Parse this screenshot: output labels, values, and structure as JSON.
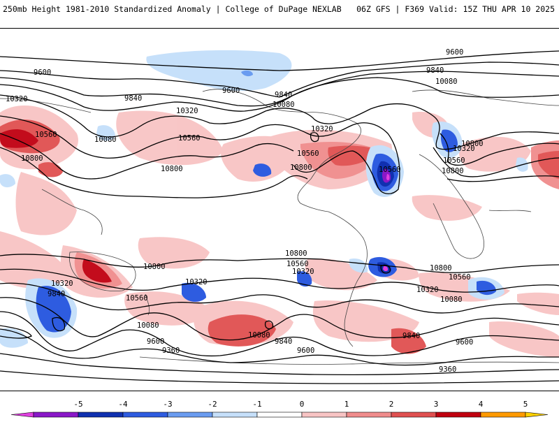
{
  "header": {
    "left": "250mb Height 1981-2010 Standardized Anomaly | College of DuPage NEXLAB",
    "right": "06Z GFS | F369 Valid: 15Z THU APR 10 2025"
  },
  "map": {
    "contour_labels": [
      {
        "id": "lbl-9600-a",
        "text": "9600"
      },
      {
        "id": "lbl-9600-b",
        "text": "9600"
      },
      {
        "id": "lbl-9600-c",
        "text": "9600"
      },
      {
        "id": "lbl-9840-a",
        "text": "9840"
      },
      {
        "id": "lbl-9840-b",
        "text": "9840"
      },
      {
        "id": "lbl-9840-c",
        "text": "9840"
      },
      {
        "id": "lbl-10080-a",
        "text": "10080"
      },
      {
        "id": "lbl-10080-b",
        "text": "10080"
      },
      {
        "id": "lbl-10080-c",
        "text": "10080"
      },
      {
        "id": "lbl-10320-a",
        "text": "10320"
      },
      {
        "id": "lbl-10320-b",
        "text": "10320"
      },
      {
        "id": "lbl-10320-c",
        "text": "10320"
      },
      {
        "id": "lbl-10320-d",
        "text": "10320"
      },
      {
        "id": "lbl-10560-a",
        "text": "10560"
      },
      {
        "id": "lbl-10560-b",
        "text": "10560"
      },
      {
        "id": "lbl-10560-c",
        "text": "10560"
      },
      {
        "id": "lbl-10560-d",
        "text": "10560"
      },
      {
        "id": "lbl-10560-e",
        "text": "10560"
      },
      {
        "id": "lbl-10800-a",
        "text": "10800"
      },
      {
        "id": "lbl-10800-b",
        "text": "10800"
      },
      {
        "id": "lbl-10800-c",
        "text": "10800"
      },
      {
        "id": "lbl-10800-d",
        "text": "10800"
      },
      {
        "id": "lbl-10800-e",
        "text": "10800"
      },
      {
        "id": "lbl-10800-s1",
        "text": "10800"
      },
      {
        "id": "lbl-10800-s2",
        "text": "10800"
      },
      {
        "id": "lbl-10800-s3",
        "text": "10800"
      },
      {
        "id": "lbl-10560-s1",
        "text": "10560"
      },
      {
        "id": "lbl-10560-s2",
        "text": "10560"
      },
      {
        "id": "lbl-10560-s3",
        "text": "10560"
      },
      {
        "id": "lbl-10320-s1",
        "text": "10320"
      },
      {
        "id": "lbl-10320-s2",
        "text": "10320"
      },
      {
        "id": "lbl-10320-s3",
        "text": "10320"
      },
      {
        "id": "lbl-10320-s4",
        "text": "10320"
      },
      {
        "id": "lbl-10080-s1",
        "text": "10080"
      },
      {
        "id": "lbl-10080-s2",
        "text": "10080"
      },
      {
        "id": "lbl-10080-s3",
        "text": "10080"
      },
      {
        "id": "lbl-9840-s1",
        "text": "9840"
      },
      {
        "id": "lbl-9840-s2",
        "text": "9840"
      },
      {
        "id": "lbl-9840-s3",
        "text": "9840"
      },
      {
        "id": "lbl-9600-s1",
        "text": "9600"
      },
      {
        "id": "lbl-9600-s2",
        "text": "9600"
      },
      {
        "id": "lbl-9600-s3",
        "text": "9600"
      },
      {
        "id": "lbl-9360-s1",
        "text": "9360"
      },
      {
        "id": "lbl-9360-s2",
        "text": "9360"
      }
    ]
  },
  "colorbar": {
    "ticks": [
      "-5",
      "-4",
      "-3",
      "-2",
      "-1",
      "0",
      "1",
      "2",
      "3",
      "4",
      "5"
    ],
    "colors": [
      "#e040e0",
      "#8a18c8",
      "#1030b0",
      "#2e5ce0",
      "#6a9cf0",
      "#c6e0fa",
      "#ffffff",
      "#f8c4c4",
      "#f08c8c",
      "#e05050",
      "#c00010",
      "#ff9a00",
      "#ffd000"
    ]
  }
}
